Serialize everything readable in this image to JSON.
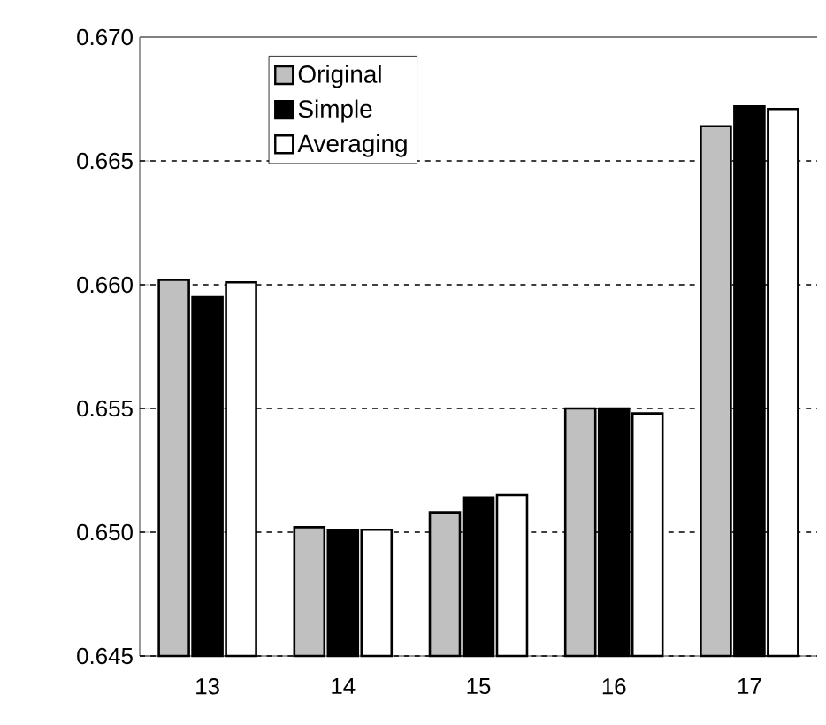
{
  "chart_data": {
    "type": "bar",
    "categories": [
      "13",
      "14",
      "15",
      "16",
      "17"
    ],
    "series": [
      {
        "name": "Original",
        "color": "#c0c0c0",
        "values": [
          0.6602,
          0.6502,
          0.6508,
          0.655,
          0.6664
        ]
      },
      {
        "name": "Simple",
        "color": "#000000",
        "values": [
          0.6595,
          0.6501,
          0.6514,
          0.655,
          0.6672
        ]
      },
      {
        "name": "Averaging",
        "color": "#ffffff",
        "values": [
          0.6601,
          0.6501,
          0.6515,
          0.6548,
          0.6671
        ]
      }
    ],
    "ylim": [
      0.645,
      0.67
    ],
    "yticks": [
      {
        "value": 0.645,
        "label": "0.645"
      },
      {
        "value": 0.65,
        "label": "0.650"
      },
      {
        "value": 0.655,
        "label": "0.655"
      },
      {
        "value": 0.66,
        "label": "0.660"
      },
      {
        "value": 0.665,
        "label": "0.665"
      },
      {
        "value": 0.67,
        "label": "0.670"
      }
    ],
    "grid": "y",
    "legend": "top"
  }
}
